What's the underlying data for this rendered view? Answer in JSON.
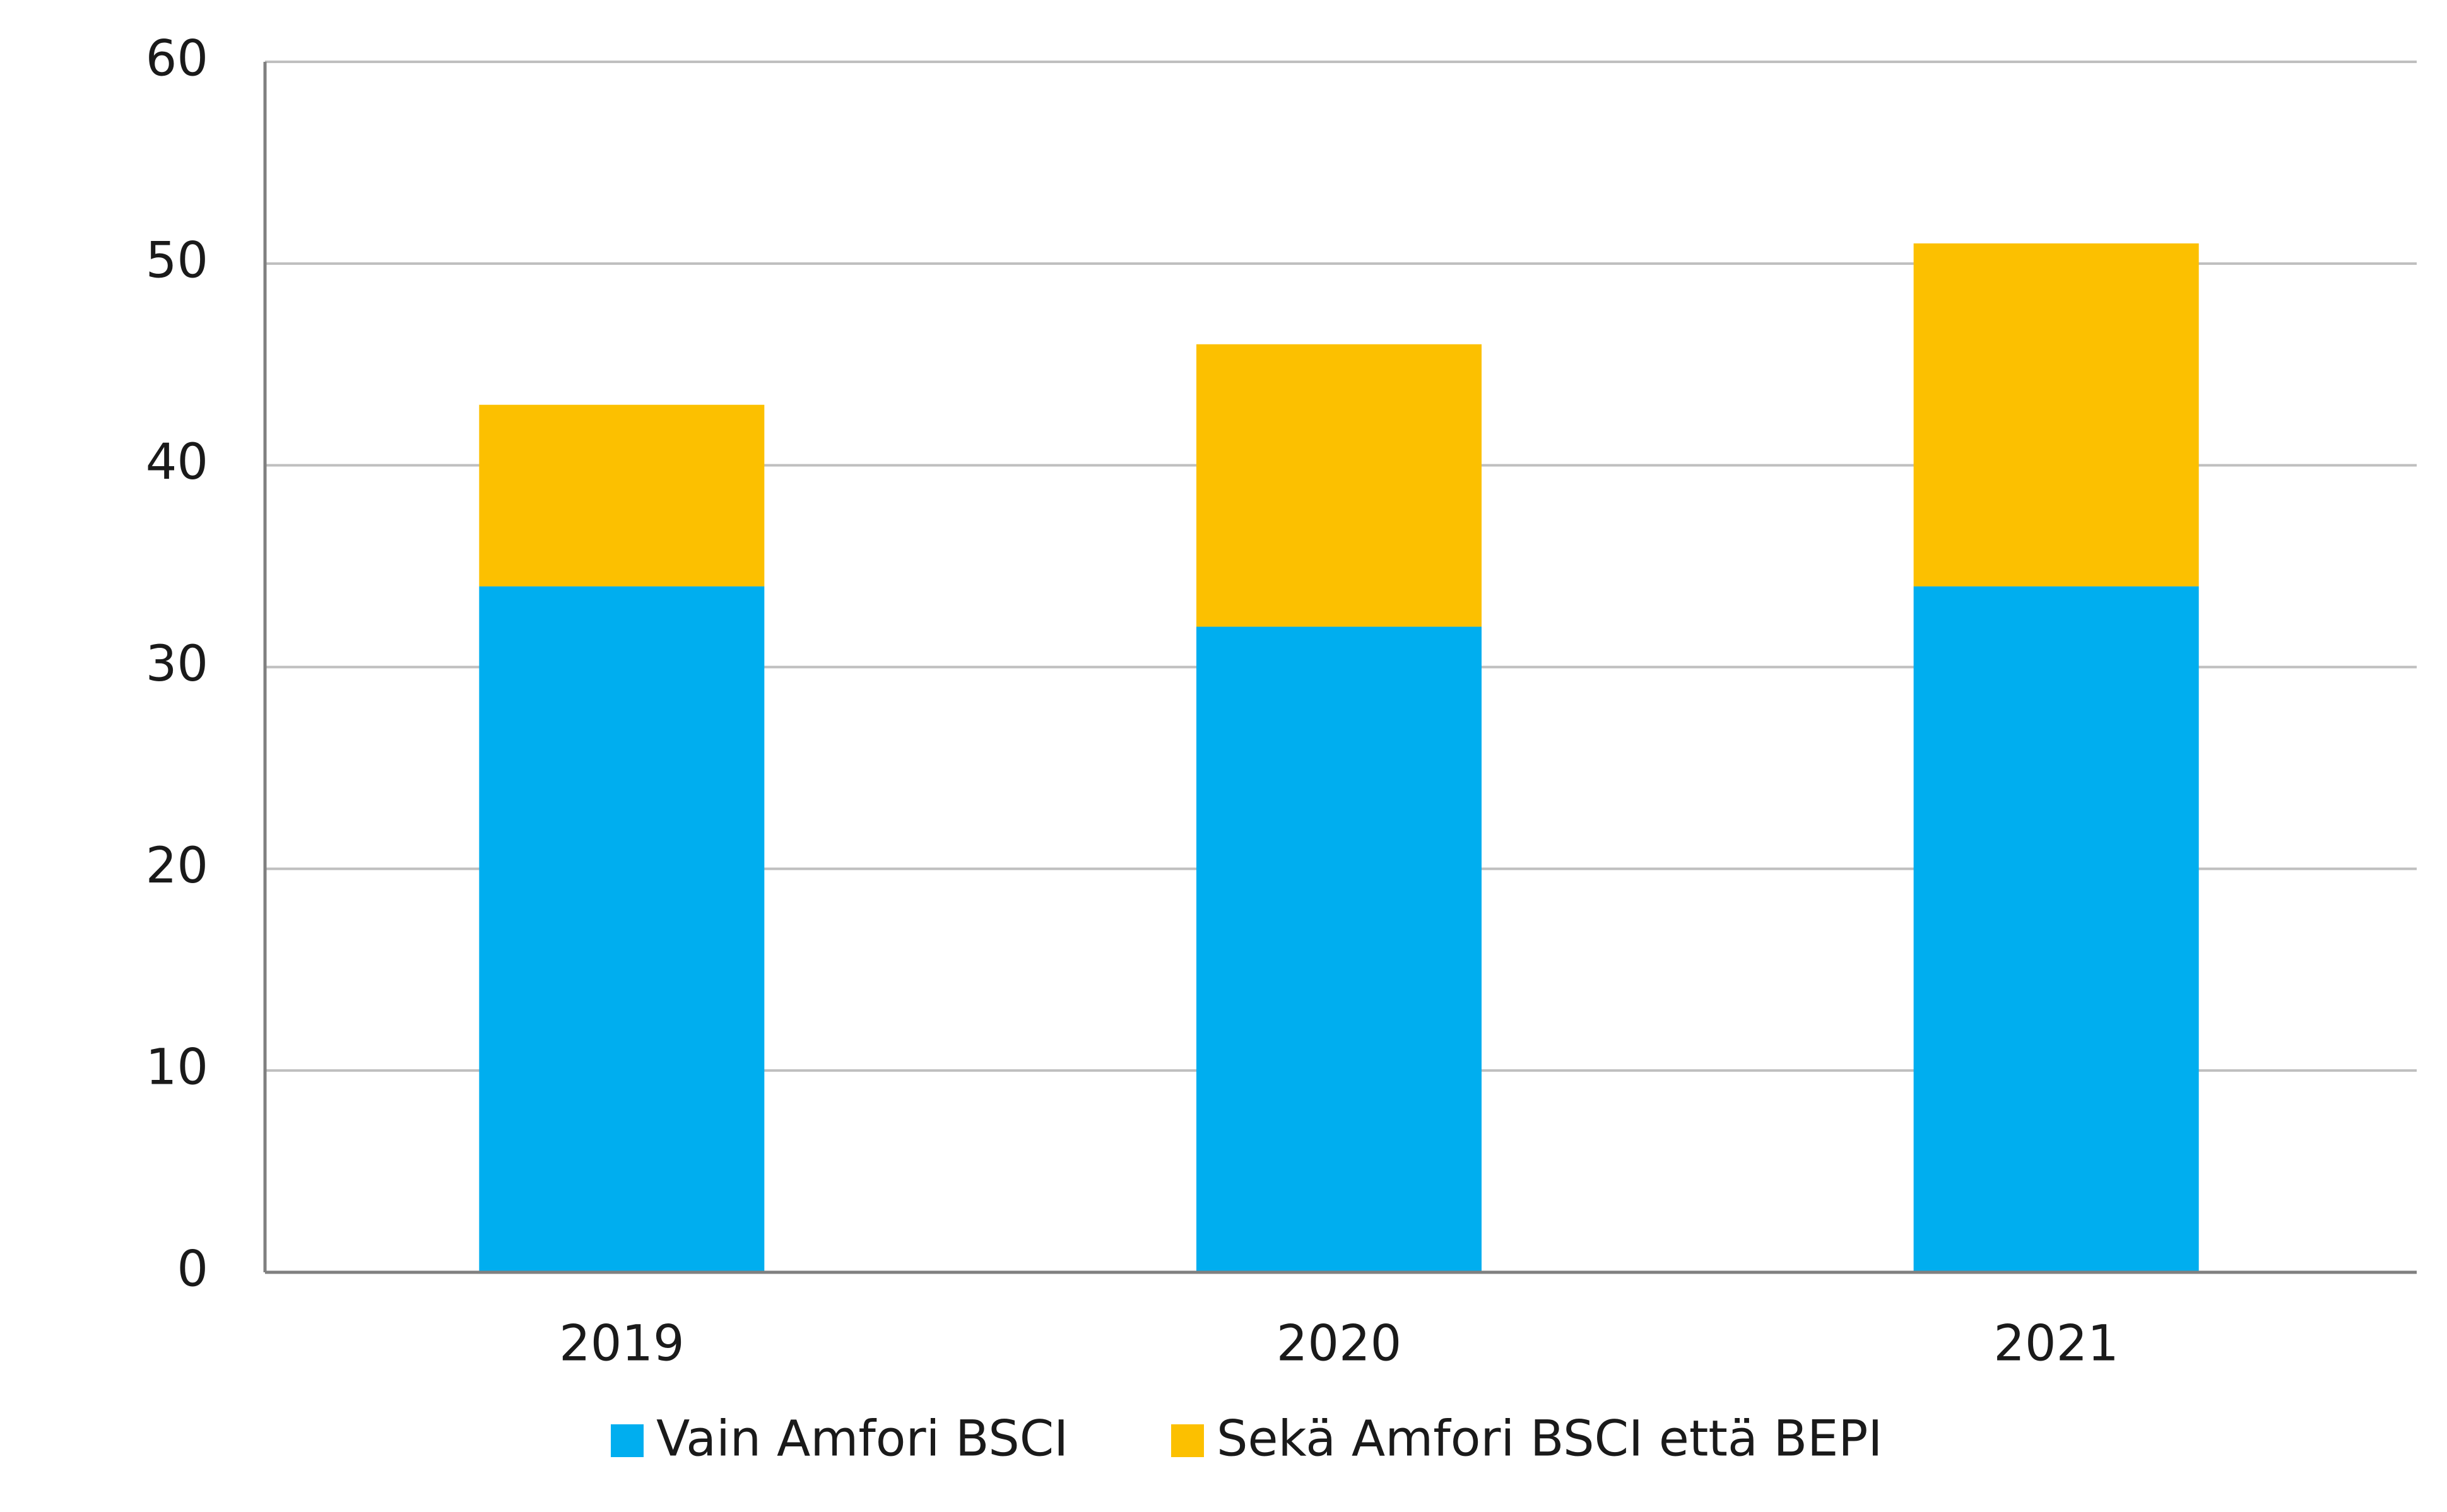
{
  "chart_data": {
    "type": "bar",
    "stacked": true,
    "categories": [
      "2019",
      "2020",
      "2021"
    ],
    "series": [
      {
        "name": "Vain Amfori BSCI",
        "values": [
          34,
          32,
          34
        ],
        "color": "#00AEEF"
      },
      {
        "name": "Sekä Amfori BSCI että BEPI",
        "values": [
          9,
          14,
          17
        ],
        "color": "#FCC000"
      }
    ],
    "ylim": [
      0,
      60
    ],
    "yticks": [
      0,
      10,
      20,
      30,
      40,
      50,
      60
    ],
    "grid": true,
    "legend_position": "bottom-center",
    "title": "",
    "xlabel": "",
    "ylabel": "",
    "colors": {
      "grid": "#BFBFBF",
      "axis": "#808080",
      "text": "#1a1a1a"
    }
  }
}
